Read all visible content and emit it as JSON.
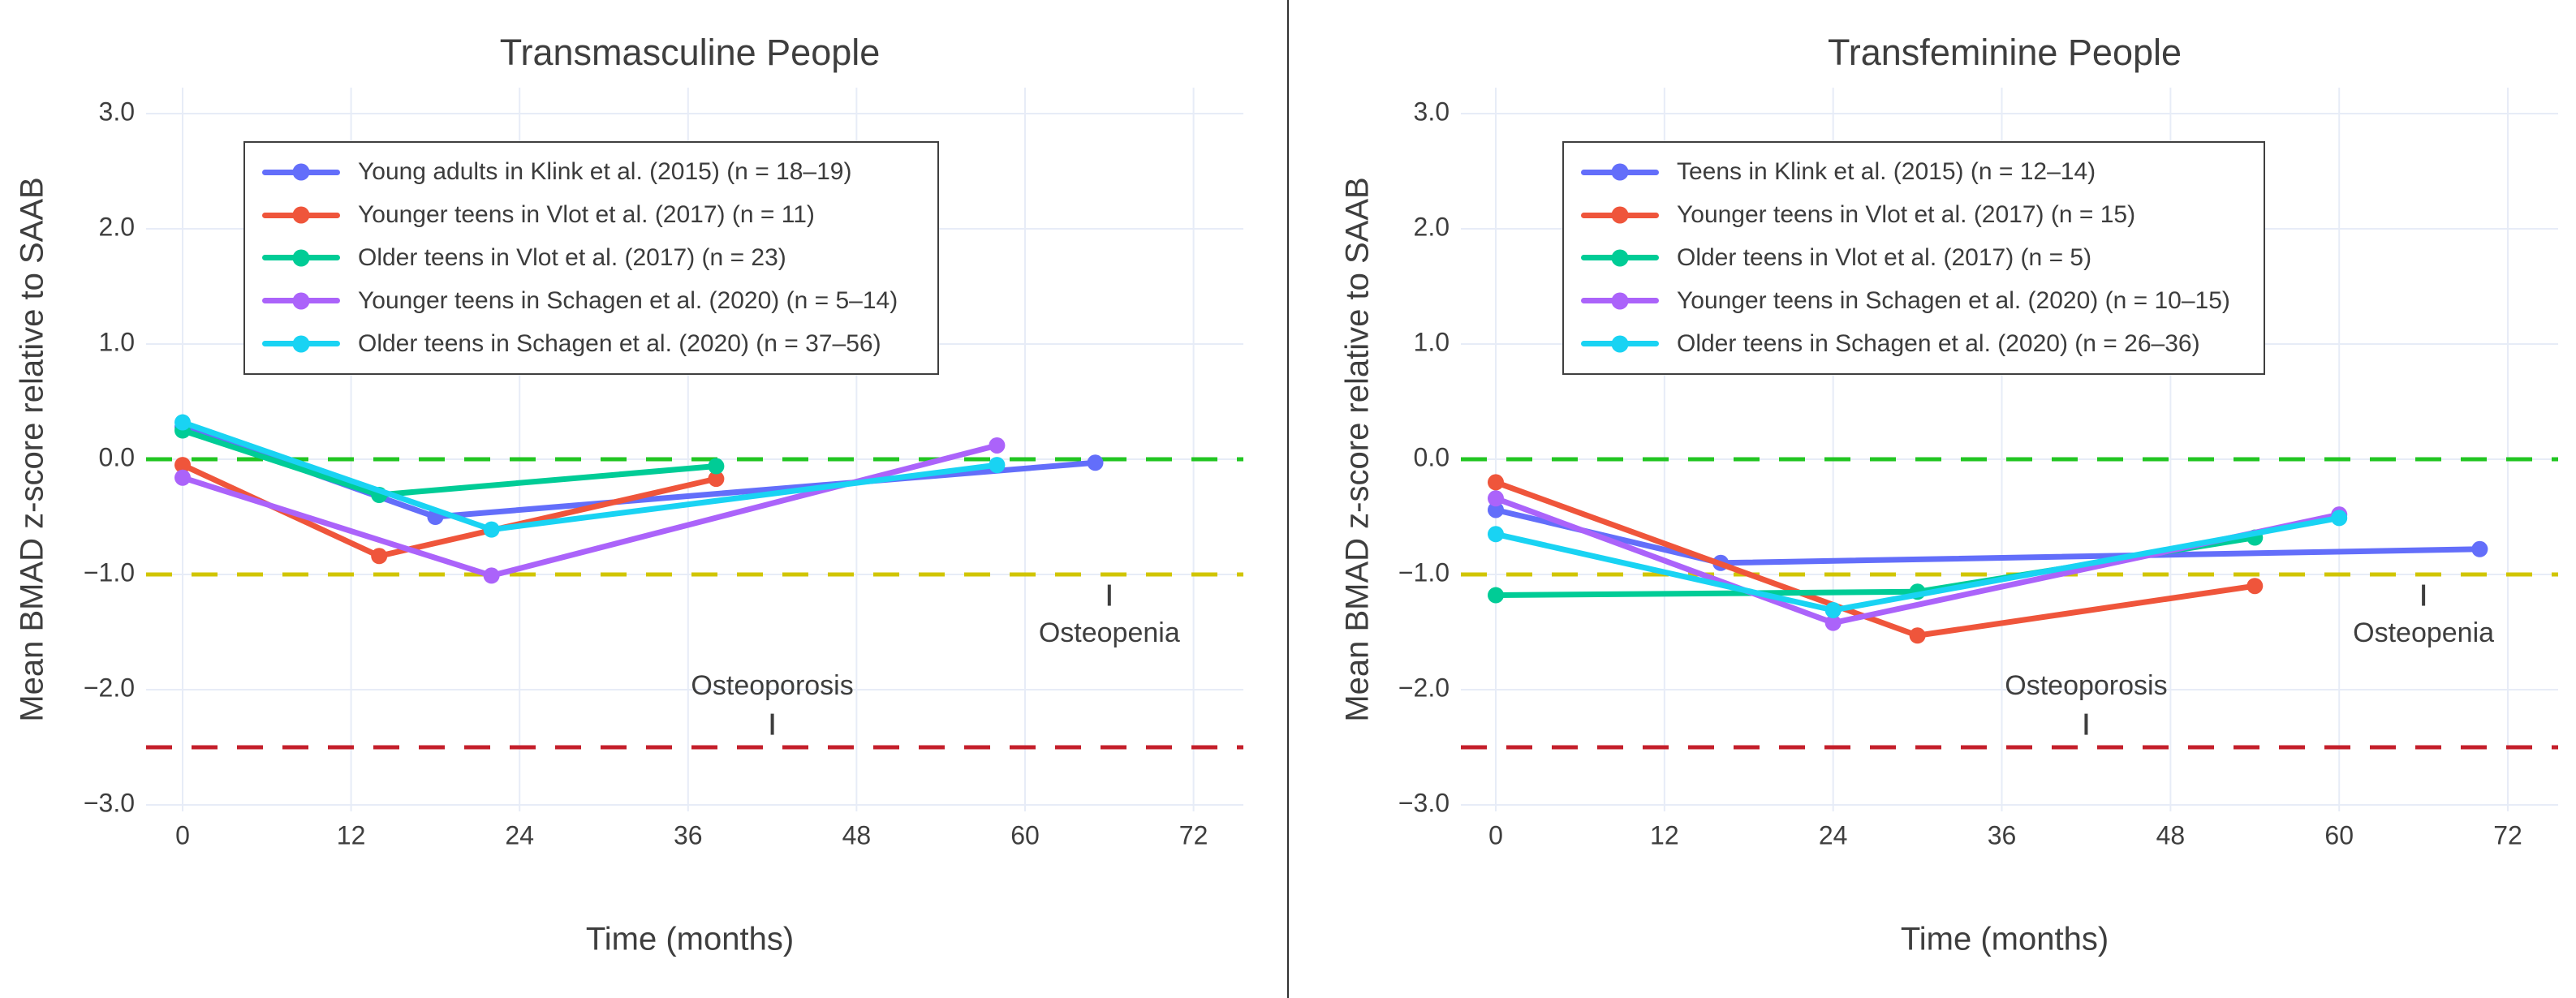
{
  "page": {
    "background": "#ffffff",
    "divider_color": "#333333",
    "grid_color": "#E7ECF7",
    "text_color": "#3E3E3E"
  },
  "chart_data": [
    {
      "type": "line",
      "title": "Transmasculine People",
      "xlabel": "Time (months)",
      "ylabel": "Mean BMAD z-score relative to SAAB",
      "x_tick_labels": [
        "0",
        "12",
        "24",
        "36",
        "48",
        "60",
        "72"
      ],
      "x_tick_values": [
        0,
        12,
        24,
        36,
        48,
        60,
        72
      ],
      "y_tick_labels": [
        "3.0",
        "2.0",
        "1.0",
        "0.0",
        "−1.0",
        "−2.0",
        "−3.0"
      ],
      "y_tick_values": [
        3,
        2,
        1,
        0,
        -1,
        -2,
        -3
      ],
      "xlim": [
        -2.6,
        75.6
      ],
      "ylim": [
        -3.06,
        3.22
      ],
      "grid": true,
      "legend_position": "upper-left",
      "reference_lines": [
        {
          "name": "zero-line",
          "y": 0,
          "color": "#22C522"
        },
        {
          "name": "osteopenia-threshold",
          "y": -1,
          "color": "#D1C500"
        },
        {
          "name": "osteoporosis-threshold",
          "y": -2.5,
          "color": "#C41E2A"
        }
      ],
      "annotations": [
        {
          "label": "Osteoporosis",
          "x": 42,
          "label_z": -1.98,
          "tick_z": -2.3,
          "tick_side": "below-text"
        },
        {
          "label": "Osteopenia",
          "x": 66,
          "label_z": -1.52,
          "tick_z": -1.18,
          "tick_side": "above-text"
        }
      ],
      "series": [
        {
          "name": "Young adults in Klink et al. (2015) (n = 18–19)",
          "color": "#636EFA",
          "x": [
            0,
            18,
            65
          ],
          "y": [
            0.28,
            -0.5,
            -0.03
          ]
        },
        {
          "name": "Younger teens in Vlot et al. (2017) (n = 11)",
          "color": "#EF553B",
          "x": [
            0,
            14,
            38
          ],
          "y": [
            -0.05,
            -0.84,
            -0.17
          ]
        },
        {
          "name": "Older teens in Vlot et al. (2017) (n = 23)",
          "color": "#00CC96",
          "x": [
            0,
            14,
            38
          ],
          "y": [
            0.25,
            -0.31,
            -0.06
          ]
        },
        {
          "name": "Younger teens in Schagen et al. (2020) (n = 5–14)",
          "color": "#AB63FA",
          "x": [
            0,
            22,
            58
          ],
          "y": [
            -0.16,
            -1.01,
            0.12
          ]
        },
        {
          "name": "Older teens in Schagen et al. (2020) (n = 37–56)",
          "color": "#19D3F3",
          "x": [
            0,
            22,
            58
          ],
          "y": [
            0.32,
            -0.61,
            -0.05
          ]
        }
      ]
    },
    {
      "type": "line",
      "title": "Transfeminine People",
      "xlabel": "Time (months)",
      "ylabel": "Mean BMAD z-score relative to SAAB",
      "x_tick_labels": [
        "0",
        "12",
        "24",
        "36",
        "48",
        "60",
        "72"
      ],
      "x_tick_values": [
        0,
        12,
        24,
        36,
        48,
        60,
        72
      ],
      "y_tick_labels": [
        "3.0",
        "2.0",
        "1.0",
        "0.0",
        "−1.0",
        "−2.0",
        "−3.0"
      ],
      "y_tick_values": [
        3,
        2,
        1,
        0,
        -1,
        -2,
        -3
      ],
      "xlim": [
        -2.6,
        75.6
      ],
      "ylim": [
        -3.06,
        3.22
      ],
      "grid": true,
      "legend_position": "upper-left",
      "reference_lines": [
        {
          "name": "zero-line",
          "y": 0,
          "color": "#22C522"
        },
        {
          "name": "osteopenia-threshold",
          "y": -1,
          "color": "#D1C500"
        },
        {
          "name": "osteoporosis-threshold",
          "y": -2.5,
          "color": "#C41E2A"
        }
      ],
      "annotations": [
        {
          "label": "Osteoporosis",
          "x": 42,
          "label_z": -1.98,
          "tick_z": -2.3,
          "tick_side": "below-text"
        },
        {
          "label": "Osteopenia",
          "x": 66,
          "label_z": -1.52,
          "tick_z": -1.18,
          "tick_side": "above-text"
        }
      ],
      "series": [
        {
          "name": "Teens in Klink et al. (2015) (n = 12–14)",
          "color": "#636EFA",
          "x": [
            0,
            16,
            70
          ],
          "y": [
            -0.44,
            -0.9,
            -0.78
          ]
        },
        {
          "name": "Younger teens in Vlot et al. (2017) (n = 15)",
          "color": "#EF553B",
          "x": [
            0,
            30,
            54
          ],
          "y": [
            -0.2,
            -1.53,
            -1.1
          ]
        },
        {
          "name": "Older teens in Vlot et al. (2017) (n = 5)",
          "color": "#00CC96",
          "x": [
            0,
            30,
            54
          ],
          "y": [
            -1.18,
            -1.15,
            -0.68
          ]
        },
        {
          "name": "Younger teens in Schagen et al. (2020) (n = 10–15)",
          "color": "#AB63FA",
          "x": [
            0,
            24,
            60
          ],
          "y": [
            -0.34,
            -1.42,
            -0.48
          ]
        },
        {
          "name": "Older teens in Schagen et al. (2020) (n = 26–36)",
          "color": "#19D3F3",
          "x": [
            0,
            24,
            60
          ],
          "y": [
            -0.65,
            -1.31,
            -0.51
          ]
        }
      ]
    }
  ]
}
